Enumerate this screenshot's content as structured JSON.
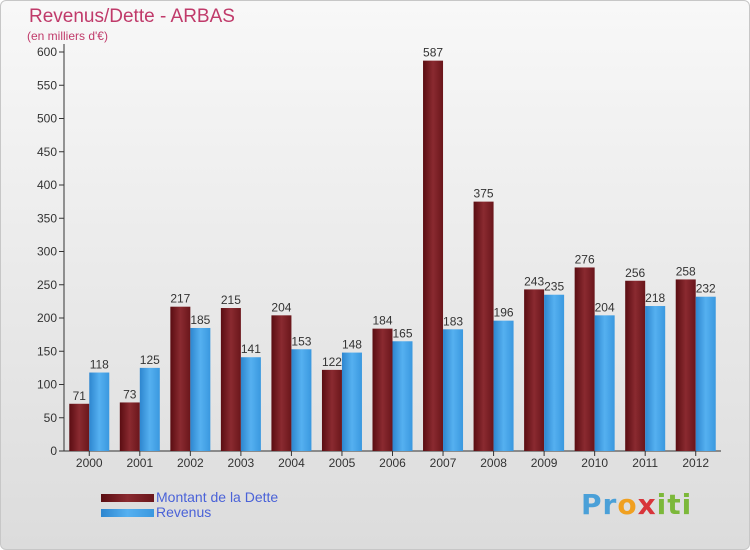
{
  "title": "Revenus/Dette - ARBAS",
  "subtitle": "(en milliers d'€)",
  "colors": {
    "dette": "#7a1e24",
    "revenus": "#3f9be0",
    "title": "#c03a6a",
    "legend_text": "#4a62d8"
  },
  "logo": {
    "p1": "Pr",
    "p2": "o",
    "p3": "x",
    "p4": "iti"
  },
  "chart_data": {
    "type": "bar",
    "categories": [
      "2000",
      "2001",
      "2002",
      "2003",
      "2004",
      "2005",
      "2006",
      "2007",
      "2008",
      "2009",
      "2010",
      "2011",
      "2012"
    ],
    "series": [
      {
        "name": "Montant de la Dette",
        "values": [
          71,
          73,
          217,
          215,
          204,
          122,
          184,
          587,
          375,
          243,
          276,
          256,
          258
        ]
      },
      {
        "name": "Revenus",
        "values": [
          118,
          125,
          185,
          141,
          153,
          148,
          165,
          183,
          196,
          235,
          204,
          218,
          232
        ]
      }
    ],
    "y_ticks": [
      0,
      50,
      100,
      150,
      200,
      250,
      300,
      350,
      400,
      450,
      500,
      550,
      600
    ],
    "ylim": [
      0,
      600
    ],
    "grid": false,
    "legend_position": "bottom-left"
  }
}
